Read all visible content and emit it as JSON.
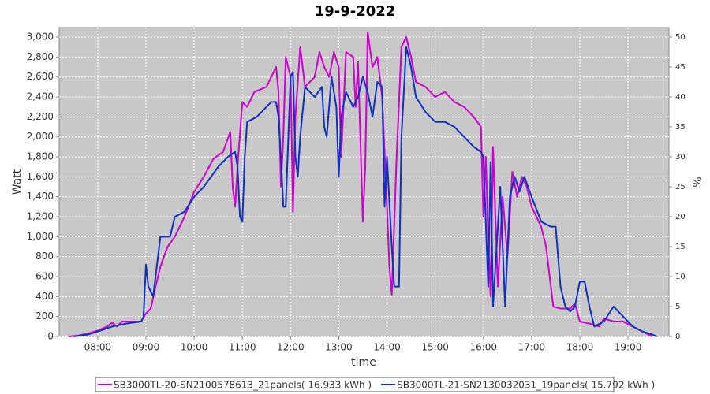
{
  "chart_data": {
    "type": "line",
    "title": "19-9-2022",
    "xlabel": "time",
    "ylabel": "Watt",
    "y2label": "%",
    "xlim": [
      7.2,
      19.85
    ],
    "ylim": [
      0,
      3095
    ],
    "y2lim": [
      0,
      51.58
    ],
    "grid": true,
    "legend": "bottom",
    "xticks": [
      {
        "value": 8,
        "label": "08:00"
      },
      {
        "value": 9,
        "label": "09:00"
      },
      {
        "value": 10,
        "label": "10:00"
      },
      {
        "value": 11,
        "label": "11:00"
      },
      {
        "value": 12,
        "label": "12:00"
      },
      {
        "value": 13,
        "label": "13:00"
      },
      {
        "value": 14,
        "label": "14:00"
      },
      {
        "value": 15,
        "label": "15:00"
      },
      {
        "value": 16,
        "label": "16:00"
      },
      {
        "value": 17,
        "label": "17:00"
      },
      {
        "value": 18,
        "label": "18:00"
      },
      {
        "value": 19,
        "label": "19:00"
      }
    ],
    "yticks": [
      0,
      200,
      400,
      600,
      800,
      {
        "value": 1000,
        "label": "1,000"
      },
      {
        "value": 1200,
        "label": "1,200"
      },
      {
        "value": 1400,
        "label": "1,400"
      },
      {
        "value": 1600,
        "label": "1,600"
      },
      {
        "value": 1800,
        "label": "1,800"
      },
      {
        "value": 2000,
        "label": "2,000"
      },
      {
        "value": 2200,
        "label": "2,200"
      },
      {
        "value": 2400,
        "label": "2,400"
      },
      {
        "value": 2600,
        "label": "2,600"
      },
      {
        "value": 2800,
        "label": "2,800"
      },
      {
        "value": 3000,
        "label": "3,000"
      }
    ],
    "y2ticks": [
      0,
      5,
      10,
      15,
      20,
      25,
      30,
      35,
      40,
      45,
      50
    ],
    "series": [
      {
        "name": "SB3000TL-20-SN2100578613_21panels( 16.933 kWh )",
        "color": "#cc00cc",
        "x": [
          7.4,
          7.6,
          7.8,
          8.0,
          8.2,
          8.3,
          8.4,
          8.5,
          8.7,
          8.9,
          9.0,
          9.1,
          9.2,
          9.3,
          9.45,
          9.6,
          9.8,
          10.0,
          10.2,
          10.4,
          10.6,
          10.75,
          10.8,
          10.85,
          10.9,
          11.0,
          11.1,
          11.25,
          11.5,
          11.7,
          11.75,
          11.8,
          11.85,
          11.9,
          12.0,
          12.05,
          12.1,
          12.2,
          12.3,
          12.5,
          12.6,
          12.7,
          12.8,
          12.9,
          13.0,
          13.05,
          13.15,
          13.3,
          13.35,
          13.4,
          13.5,
          13.55,
          13.6,
          13.7,
          13.8,
          13.9,
          14.0,
          14.05,
          14.1,
          14.2,
          14.3,
          14.4,
          14.5,
          14.6,
          14.8,
          15.0,
          15.2,
          15.4,
          15.6,
          15.8,
          15.95,
          16.0,
          16.05,
          16.1,
          16.15,
          16.2,
          16.3,
          16.4,
          16.5,
          16.6,
          16.7,
          16.8,
          16.9,
          17.0,
          17.2,
          17.3,
          17.45,
          17.6,
          17.8,
          17.9,
          18.0,
          18.2,
          18.4,
          18.5,
          18.7,
          18.9,
          19.1,
          19.3,
          19.5
        ],
        "values": [
          0,
          10,
          30,
          60,
          100,
          140,
          100,
          150,
          150,
          150,
          230,
          280,
          500,
          700,
          900,
          1000,
          1200,
          1450,
          1600,
          1780,
          1850,
          2050,
          1500,
          1300,
          1700,
          2350,
          2300,
          2450,
          2500,
          2700,
          2450,
          1500,
          2000,
          2800,
          2600,
          1250,
          2200,
          2900,
          2500,
          2600,
          2850,
          2700,
          2600,
          2850,
          2700,
          1800,
          2850,
          2800,
          2300,
          2750,
          1150,
          1700,
          3050,
          2700,
          2800,
          2400,
          1300,
          700,
          420,
          1800,
          2900,
          3000,
          2800,
          2550,
          2500,
          2400,
          2450,
          2350,
          2300,
          2200,
          2100,
          1200,
          1800,
          1000,
          400,
          1900,
          500,
          1400,
          800,
          1650,
          1400,
          1600,
          1500,
          1300,
          1100,
          900,
          300,
          280,
          280,
          330,
          150,
          130,
          100,
          180,
          150,
          150,
          100,
          50,
          0
        ]
      },
      {
        "name": "SB3000TL-21-SN2130032031_19panels( 15.792 kWh )",
        "color": "#1030c0",
        "x": [
          7.5,
          7.8,
          8.0,
          8.3,
          8.6,
          8.9,
          8.95,
          9.0,
          9.05,
          9.15,
          9.3,
          9.4,
          9.5,
          9.6,
          9.8,
          10.0,
          10.2,
          10.5,
          10.7,
          10.85,
          10.9,
          10.95,
          11.0,
          11.05,
          11.1,
          11.3,
          11.5,
          11.6,
          11.7,
          11.75,
          11.8,
          11.85,
          11.9,
          12.0,
          12.05,
          12.1,
          12.15,
          12.2,
          12.3,
          12.5,
          12.65,
          12.7,
          12.75,
          12.85,
          12.95,
          13.0,
          13.05,
          13.15,
          13.3,
          13.4,
          13.5,
          13.6,
          13.7,
          13.8,
          13.9,
          13.95,
          14.0,
          14.1,
          14.15,
          14.25,
          14.3,
          14.4,
          14.5,
          14.6,
          14.8,
          15.0,
          15.2,
          15.4,
          15.6,
          15.8,
          15.95,
          16.0,
          16.1,
          16.15,
          16.2,
          16.35,
          16.45,
          16.55,
          16.65,
          16.75,
          16.85,
          17.0,
          17.2,
          17.4,
          17.5,
          17.6,
          17.7,
          17.8,
          17.9,
          18.0,
          18.1,
          18.2,
          18.3,
          18.5,
          18.7,
          18.9,
          19.1,
          19.3,
          19.5,
          19.6
        ],
        "values": [
          0,
          20,
          50,
          100,
          130,
          150,
          200,
          720,
          500,
          400,
          1000,
          1000,
          1000,
          1200,
          1250,
          1400,
          1500,
          1700,
          1800,
          1850,
          1700,
          1200,
          1150,
          1800,
          2150,
          2200,
          2300,
          2350,
          2350,
          2200,
          1800,
          1300,
          1300,
          2600,
          2650,
          1800,
          1600,
          2000,
          2500,
          2400,
          2500,
          2100,
          2000,
          2600,
          2300,
          1600,
          2200,
          2450,
          2300,
          2400,
          2600,
          2450,
          2200,
          2550,
          2500,
          1300,
          1800,
          900,
          500,
          500,
          2000,
          2900,
          2700,
          2400,
          2250,
          2150,
          2150,
          2100,
          2000,
          1900,
          1850,
          1800,
          500,
          1750,
          300,
          1500,
          300,
          1400,
          1600,
          1450,
          1600,
          1400,
          1150,
          1100,
          1100,
          500,
          300,
          250,
          300,
          550,
          550,
          300,
          100,
          150,
          300,
          200,
          100,
          50,
          20,
          0
        ]
      }
    ]
  }
}
